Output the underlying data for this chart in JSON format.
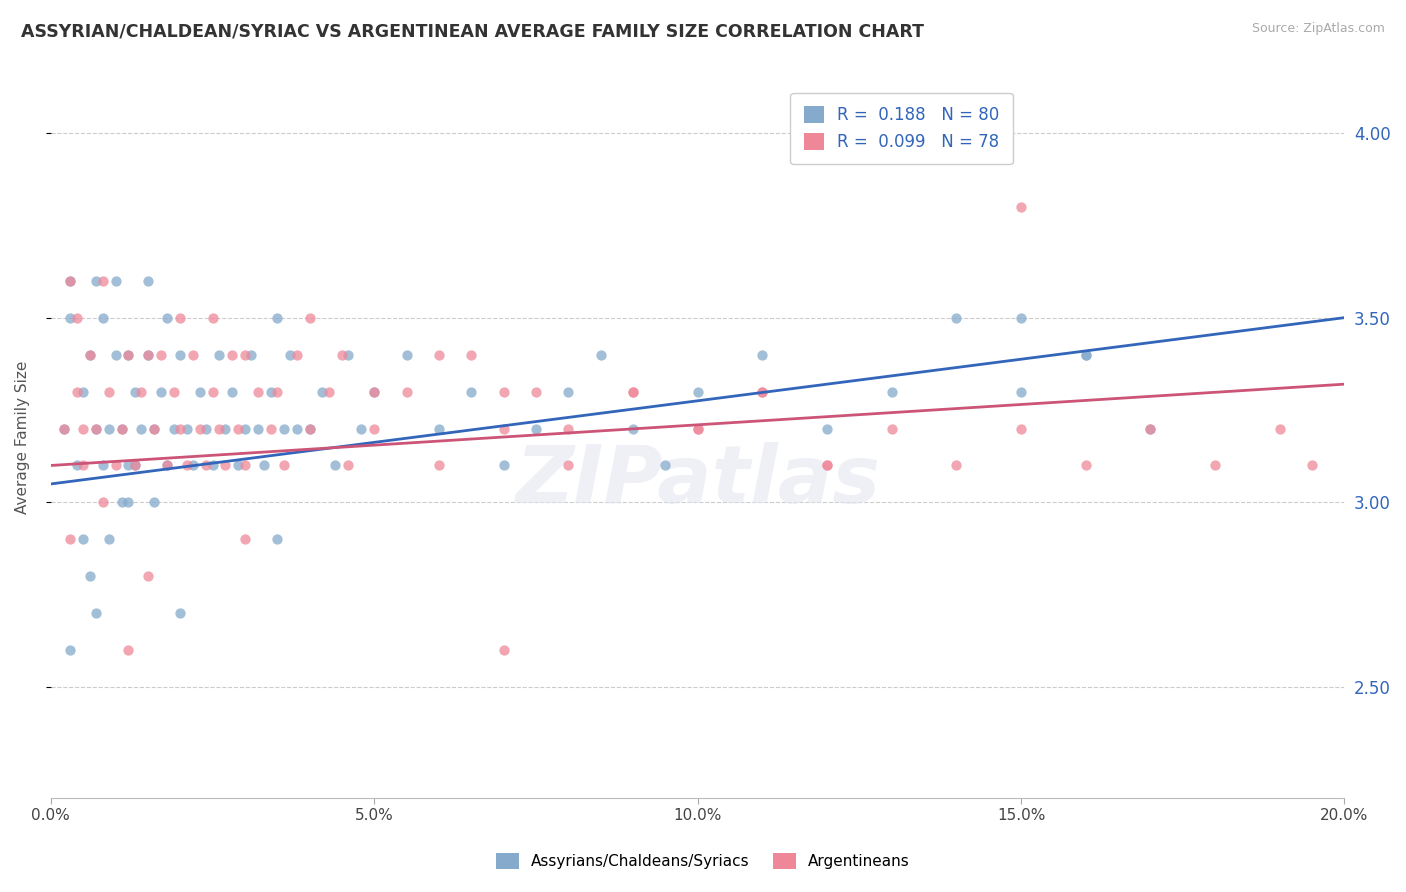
{
  "title": "ASSYRIAN/CHALDEAN/SYRIAC VS ARGENTINEAN AVERAGE FAMILY SIZE CORRELATION CHART",
  "source": "Source: ZipAtlas.com",
  "ylabel": "Average Family Size",
  "xlim": [
    0.0,
    0.2
  ],
  "ylim": [
    2.2,
    4.15
  ],
  "yticks": [
    2.5,
    3.0,
    3.5,
    4.0
  ],
  "xticks": [
    0.0,
    0.05,
    0.1,
    0.15,
    0.2
  ],
  "xticklabels": [
    "0.0%",
    "5.0%",
    "10.0%",
    "15.0%",
    "20.0%"
  ],
  "r_blue": 0.188,
  "n_blue": 80,
  "r_pink": 0.099,
  "n_pink": 78,
  "legend_labels": [
    "Assyrians/Chaldeans/Syriacs",
    "Argentineans"
  ],
  "color_blue": "#85AACC",
  "color_pink": "#EE8899",
  "line_color_blue": "#3366BB",
  "line_color_pink": "#CC5577",
  "text_color_blue": "#3366BB",
  "scatter_alpha": 0.75,
  "scatter_size": 55,
  "blue_trend_x": [
    0.0,
    0.2
  ],
  "blue_trend_y": [
    3.05,
    3.5
  ],
  "pink_trend_x": [
    0.0,
    0.2
  ],
  "pink_trend_y": [
    3.1,
    3.32
  ],
  "blue_x": [
    0.002,
    0.003,
    0.003,
    0.004,
    0.005,
    0.005,
    0.006,
    0.006,
    0.007,
    0.007,
    0.008,
    0.008,
    0.009,
    0.009,
    0.01,
    0.01,
    0.011,
    0.011,
    0.012,
    0.012,
    0.013,
    0.013,
    0.014,
    0.015,
    0.015,
    0.016,
    0.016,
    0.017,
    0.018,
    0.018,
    0.019,
    0.02,
    0.021,
    0.022,
    0.023,
    0.024,
    0.025,
    0.026,
    0.027,
    0.028,
    0.029,
    0.03,
    0.031,
    0.032,
    0.033,
    0.034,
    0.035,
    0.036,
    0.037,
    0.038,
    0.04,
    0.042,
    0.044,
    0.046,
    0.048,
    0.05,
    0.055,
    0.06,
    0.065,
    0.07,
    0.075,
    0.08,
    0.085,
    0.09,
    0.095,
    0.1,
    0.11,
    0.12,
    0.13,
    0.14,
    0.15,
    0.16,
    0.17,
    0.003,
    0.007,
    0.012,
    0.02,
    0.035,
    0.15,
    0.16
  ],
  "blue_y": [
    3.2,
    3.5,
    3.6,
    3.1,
    2.9,
    3.3,
    3.4,
    2.8,
    3.2,
    3.6,
    3.1,
    3.5,
    3.2,
    2.9,
    3.4,
    3.6,
    3.0,
    3.2,
    3.1,
    3.4,
    3.3,
    3.1,
    3.2,
    3.4,
    3.6,
    3.2,
    3.0,
    3.3,
    3.1,
    3.5,
    3.2,
    3.4,
    3.2,
    3.1,
    3.3,
    3.2,
    3.1,
    3.4,
    3.2,
    3.3,
    3.1,
    3.2,
    3.4,
    3.2,
    3.1,
    3.3,
    3.5,
    3.2,
    3.4,
    3.2,
    3.2,
    3.3,
    3.1,
    3.4,
    3.2,
    3.3,
    3.4,
    3.2,
    3.3,
    3.1,
    3.2,
    3.3,
    3.4,
    3.2,
    3.1,
    3.3,
    3.4,
    3.2,
    3.3,
    3.5,
    3.3,
    3.4,
    3.2,
    2.6,
    2.7,
    3.0,
    2.7,
    2.9,
    3.5,
    3.4
  ],
  "pink_x": [
    0.002,
    0.003,
    0.004,
    0.005,
    0.006,
    0.007,
    0.008,
    0.009,
    0.01,
    0.011,
    0.012,
    0.013,
    0.014,
    0.015,
    0.016,
    0.017,
    0.018,
    0.019,
    0.02,
    0.021,
    0.022,
    0.023,
    0.024,
    0.025,
    0.026,
    0.027,
    0.028,
    0.029,
    0.03,
    0.032,
    0.034,
    0.036,
    0.038,
    0.04,
    0.043,
    0.046,
    0.05,
    0.055,
    0.06,
    0.065,
    0.07,
    0.075,
    0.08,
    0.09,
    0.1,
    0.11,
    0.12,
    0.004,
    0.008,
    0.015,
    0.02,
    0.025,
    0.03,
    0.035,
    0.04,
    0.045,
    0.05,
    0.06,
    0.07,
    0.08,
    0.09,
    0.1,
    0.11,
    0.12,
    0.13,
    0.14,
    0.15,
    0.16,
    0.17,
    0.18,
    0.19,
    0.195,
    0.003,
    0.012,
    0.03,
    0.07,
    0.15,
    0.005
  ],
  "pink_y": [
    3.2,
    2.9,
    3.3,
    3.1,
    3.4,
    3.2,
    3.0,
    3.3,
    3.1,
    3.2,
    3.4,
    3.1,
    3.3,
    2.8,
    3.2,
    3.4,
    3.1,
    3.3,
    3.2,
    3.1,
    3.4,
    3.2,
    3.1,
    3.3,
    3.2,
    3.1,
    3.4,
    3.2,
    3.1,
    3.3,
    3.2,
    3.1,
    3.4,
    3.2,
    3.3,
    3.1,
    3.2,
    3.3,
    3.1,
    3.4,
    3.2,
    3.3,
    3.1,
    3.3,
    3.2,
    3.3,
    3.1,
    3.5,
    3.6,
    3.4,
    3.5,
    3.5,
    3.4,
    3.3,
    3.5,
    3.4,
    3.3,
    3.4,
    3.3,
    3.2,
    3.3,
    3.2,
    3.3,
    3.1,
    3.2,
    3.1,
    3.2,
    3.1,
    3.2,
    3.1,
    3.2,
    3.1,
    3.6,
    2.6,
    2.9,
    2.6,
    3.8,
    3.2
  ]
}
